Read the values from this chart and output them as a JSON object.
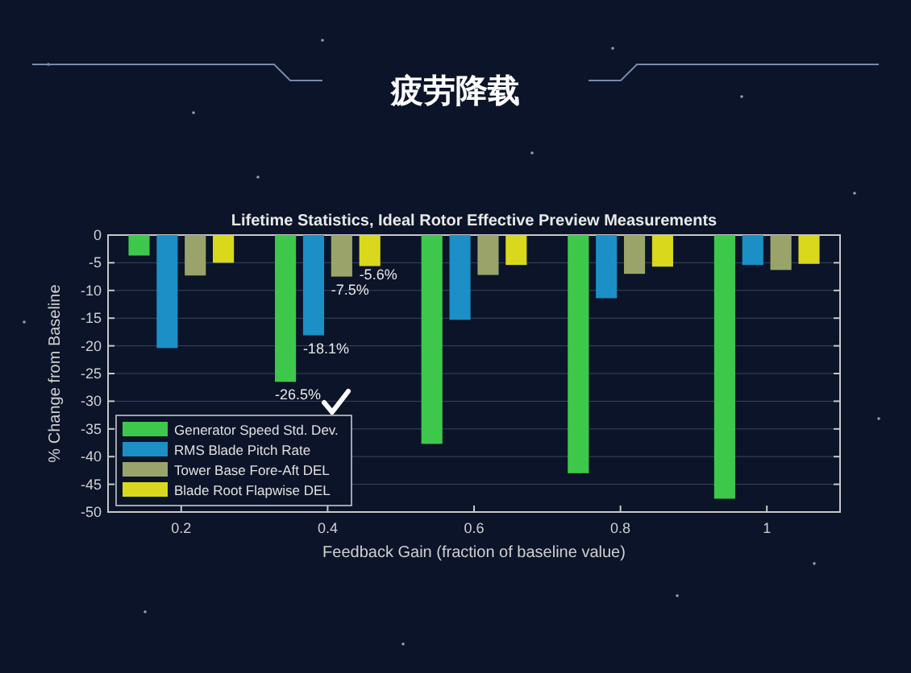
{
  "chart_data": {
    "type": "bar",
    "title": "疲劳降载",
    "subtitle": "Lifetime Statistics, Ideal Rotor Effective Preview Measurements",
    "xlabel": "Feedback Gain (fraction of baseline value)",
    "ylabel": "% Change from Baseline",
    "categories": [
      "0.2",
      "0.4",
      "0.6",
      "0.8",
      "1"
    ],
    "series": [
      {
        "name": "Generator Speed Std. Dev.",
        "color": "#3ec84b",
        "values": [
          -3.7,
          -26.5,
          -37.7,
          -43,
          -47.6
        ],
        "value_labels": [
          null,
          "-26.5%",
          null,
          null,
          null
        ]
      },
      {
        "name": "RMS Blade Pitch Rate",
        "color": "#1b8fc6",
        "values": [
          -20.4,
          -18.1,
          -15.3,
          -11.4,
          -5.4
        ],
        "value_labels": [
          null,
          "-18.1%",
          null,
          null,
          null
        ]
      },
      {
        "name": "Tower Base Fore-Aft DEL",
        "color": "#9aa46a",
        "values": [
          -7.3,
          -7.5,
          -7.2,
          -7,
          -6.3
        ],
        "value_labels": [
          null,
          "-7.5%",
          null,
          null,
          null
        ]
      },
      {
        "name": "Blade Root Flapwise DEL",
        "color": "#d9d81c",
        "values": [
          -5,
          -5.6,
          -5.4,
          -5.7,
          -5.2
        ],
        "value_labels": [
          null,
          "-5.6%",
          null,
          null,
          null
        ]
      }
    ],
    "ylim": [
      -50,
      0
    ],
    "yticks": [
      -50,
      -45,
      -40,
      -35,
      -30,
      -25,
      -20,
      -15,
      -10,
      -5,
      0
    ],
    "grid": "y",
    "legend": "bottom left"
  }
}
